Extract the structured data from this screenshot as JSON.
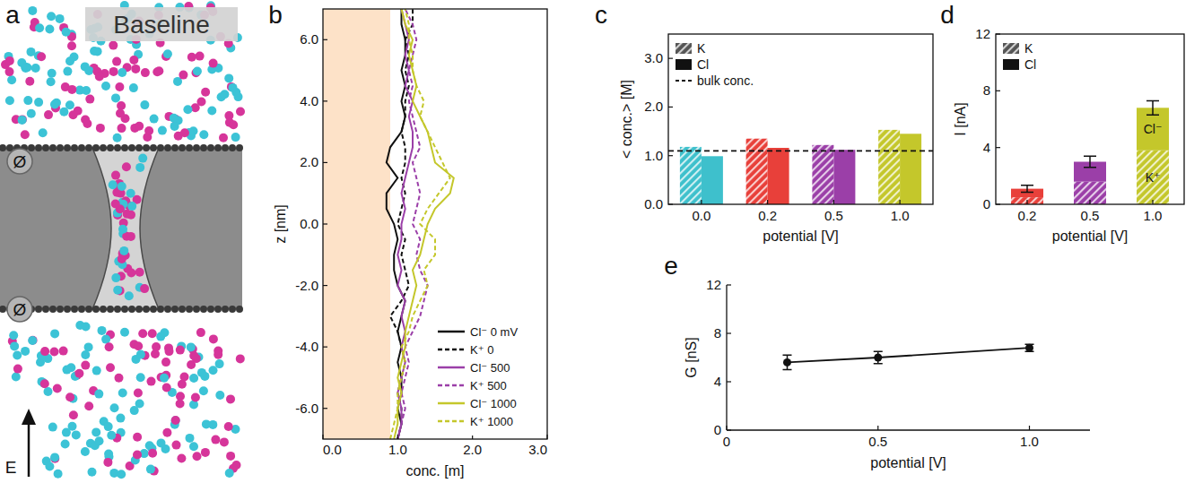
{
  "illustration": {
    "panel_label": "a",
    "title": "Baseline",
    "symbols": [
      "Ø",
      "Ø"
    ],
    "field_label": "E"
  },
  "chart_data": [
    {
      "type": "line",
      "panel_label": "b",
      "x_label": "conc. [m]",
      "y_label": "z [nm]",
      "xlim": [
        0,
        3
      ],
      "xticks": [
        {
          "value": 0,
          "label": "0.0"
        },
        {
          "value": 1,
          "label": "1.0"
        },
        {
          "value": 2,
          "label": "2.0"
        },
        {
          "value": 3,
          "label": "3.0"
        }
      ],
      "ylim": [
        -7,
        7
      ],
      "yticks": [
        {
          "value": -6,
          "label": "-6.0"
        },
        {
          "value": -4,
          "label": "-4.0"
        },
        {
          "value": -2,
          "label": "-2.0"
        },
        {
          "value": 0,
          "label": "0.0"
        },
        {
          "value": 2,
          "label": "2.0"
        },
        {
          "value": 4,
          "label": "4.0"
        },
        {
          "value": 6,
          "label": "6.0"
        }
      ],
      "shaded_x": [
        0,
        0.9
      ],
      "legend": "lower right",
      "z": [
        -7,
        -6.5,
        -6,
        -5.5,
        -5,
        -4.5,
        -4,
        -3.5,
        -3,
        -2.5,
        -2,
        -1.5,
        -1,
        -0.5,
        0,
        0.5,
        1,
        1.5,
        2,
        2.5,
        3,
        3.5,
        4,
        4.5,
        5,
        5.5,
        6,
        6.5,
        7
      ],
      "series": [
        {
          "name": "Cl⁻ 0 mV",
          "color": "#111111",
          "line_style": "solid",
          "values": [
            1.0,
            1.05,
            1.0,
            1.05,
            1.05,
            1.0,
            1.05,
            1.0,
            1.05,
            1.1,
            1.0,
            0.95,
            0.95,
            1.0,
            0.95,
            0.85,
            0.85,
            1.0,
            0.85,
            0.9,
            1.05,
            1.1,
            1.05,
            1.1,
            1.05,
            1.1,
            1.1,
            1.05,
            1.05
          ]
        },
        {
          "name": "K⁺ 0",
          "color": "#111111",
          "line_style": "dashed",
          "values": [
            1.0,
            1.05,
            1.05,
            1.0,
            1.05,
            1.1,
            1.05,
            1.0,
            0.9,
            1.05,
            1.15,
            1.1,
            1.05,
            1.1,
            1.0,
            1.05,
            1.1,
            1.05,
            1.1,
            1.1,
            1.05,
            1.1,
            1.1,
            1.15,
            1.1,
            1.15,
            1.1,
            1.2,
            1.2
          ]
        },
        {
          "name": "Cl⁻ 500",
          "color": "#9b3fa8",
          "line_style": "solid",
          "values": [
            1.0,
            1.05,
            1.05,
            1.0,
            1.05,
            1.1,
            1.05,
            1.1,
            1.05,
            1.1,
            1.0,
            1.05,
            1.0,
            1.05,
            1.05,
            1.1,
            1.05,
            1.1,
            1.15,
            1.2,
            1.2,
            1.15,
            1.2,
            1.1,
            1.15,
            1.1,
            1.15,
            1.1,
            1.05
          ]
        },
        {
          "name": "K⁺  500",
          "color": "#9b3fa8",
          "line_style": "dashed",
          "values": [
            1.0,
            1.05,
            1.1,
            1.05,
            1.1,
            1.15,
            1.1,
            1.2,
            1.3,
            1.35,
            1.4,
            1.3,
            1.25,
            1.3,
            1.2,
            1.25,
            1.3,
            1.25,
            1.2,
            1.3,
            1.25,
            1.2,
            1.15,
            1.2,
            1.15,
            1.2,
            1.25,
            1.2,
            1.1
          ]
        },
        {
          "name": "Cl⁻ 1000",
          "color": "#c4c72b",
          "line_style": "solid",
          "values": [
            0.95,
            1.0,
            1.0,
            1.05,
            1.0,
            1.05,
            1.1,
            1.1,
            1.15,
            1.2,
            1.25,
            1.2,
            1.3,
            1.35,
            1.4,
            1.5,
            1.7,
            1.75,
            1.5,
            1.45,
            1.4,
            1.3,
            1.2,
            1.25,
            1.2,
            1.15,
            1.2,
            1.1,
            1.05
          ]
        },
        {
          "name": "K⁺ 1000",
          "color": "#c4c72b",
          "line_style": "dashed",
          "values": [
            0.9,
            0.95,
            1.0,
            1.0,
            1.05,
            1.1,
            1.05,
            1.15,
            1.2,
            1.3,
            1.4,
            1.35,
            1.5,
            1.5,
            1.3,
            1.4,
            1.55,
            1.7,
            1.6,
            1.5,
            1.4,
            1.3,
            1.35,
            1.25,
            1.2,
            1.2,
            1.15,
            1.15,
            1.1
          ]
        }
      ]
    },
    {
      "type": "bar",
      "panel_label": "c",
      "x_label": "potential [V]",
      "y_label": "< conc.> [M]",
      "categories": [
        "0.0",
        "0.2",
        "0.5",
        "1.0"
      ],
      "colors": [
        "#3ec0cc",
        "#e8403a",
        "#9b3fa8",
        "#c4c72b"
      ],
      "series": [
        {
          "name": "K",
          "marker": "hatched",
          "values": [
            1.18,
            1.35,
            1.22,
            1.53
          ]
        },
        {
          "name": "Cl",
          "marker": "solid",
          "values": [
            0.99,
            1.16,
            1.12,
            1.45
          ]
        }
      ],
      "bulk_conc": 1.1,
      "bulk_label": "bulk conc.",
      "ylim": [
        0,
        3.5
      ],
      "yticks": [
        {
          "value": 0,
          "label": "0.0"
        },
        {
          "value": 1,
          "label": "1.0"
        },
        {
          "value": 2,
          "label": "2.0"
        },
        {
          "value": 3,
          "label": "3.0"
        }
      ],
      "legend": "upper left"
    },
    {
      "type": "bar",
      "stacked": true,
      "panel_label": "d",
      "x_label": "potential [V]",
      "y_label": "I [nA]",
      "categories": [
        "0.2",
        "0.5",
        "1.0"
      ],
      "colors": [
        "#e8403a",
        "#9b3fa8",
        "#c4c72b"
      ],
      "series": [
        {
          "name": "K",
          "marker": "hatched",
          "inner_label": "K⁺",
          "values": [
            0.5,
            1.6,
            3.8
          ]
        },
        {
          "name": "Cl",
          "marker": "solid",
          "inner_label": "Cl⁻",
          "values": [
            0.6,
            1.4,
            3.0
          ],
          "errors": [
            0.25,
            0.4,
            0.5
          ]
        }
      ],
      "ylim": [
        0,
        12
      ],
      "yticks": [
        0,
        4,
        8,
        12
      ],
      "legend": "upper left"
    },
    {
      "type": "line",
      "panel_label": "e",
      "x_label": "potential [V]",
      "y_label": "G [nS]",
      "x": [
        0.2,
        0.5,
        1.0
      ],
      "values": [
        5.6,
        6.0,
        6.8
      ],
      "errors": [
        0.6,
        0.5,
        0.3
      ],
      "color": "#111111",
      "marker": "circle",
      "xlim": [
        0,
        1.2
      ],
      "xticks": [
        0,
        0.5,
        {
          "value": 1,
          "label": "1.0"
        }
      ],
      "ylim": [
        0,
        12
      ],
      "yticks": [
        0,
        4,
        8,
        12
      ]
    }
  ]
}
